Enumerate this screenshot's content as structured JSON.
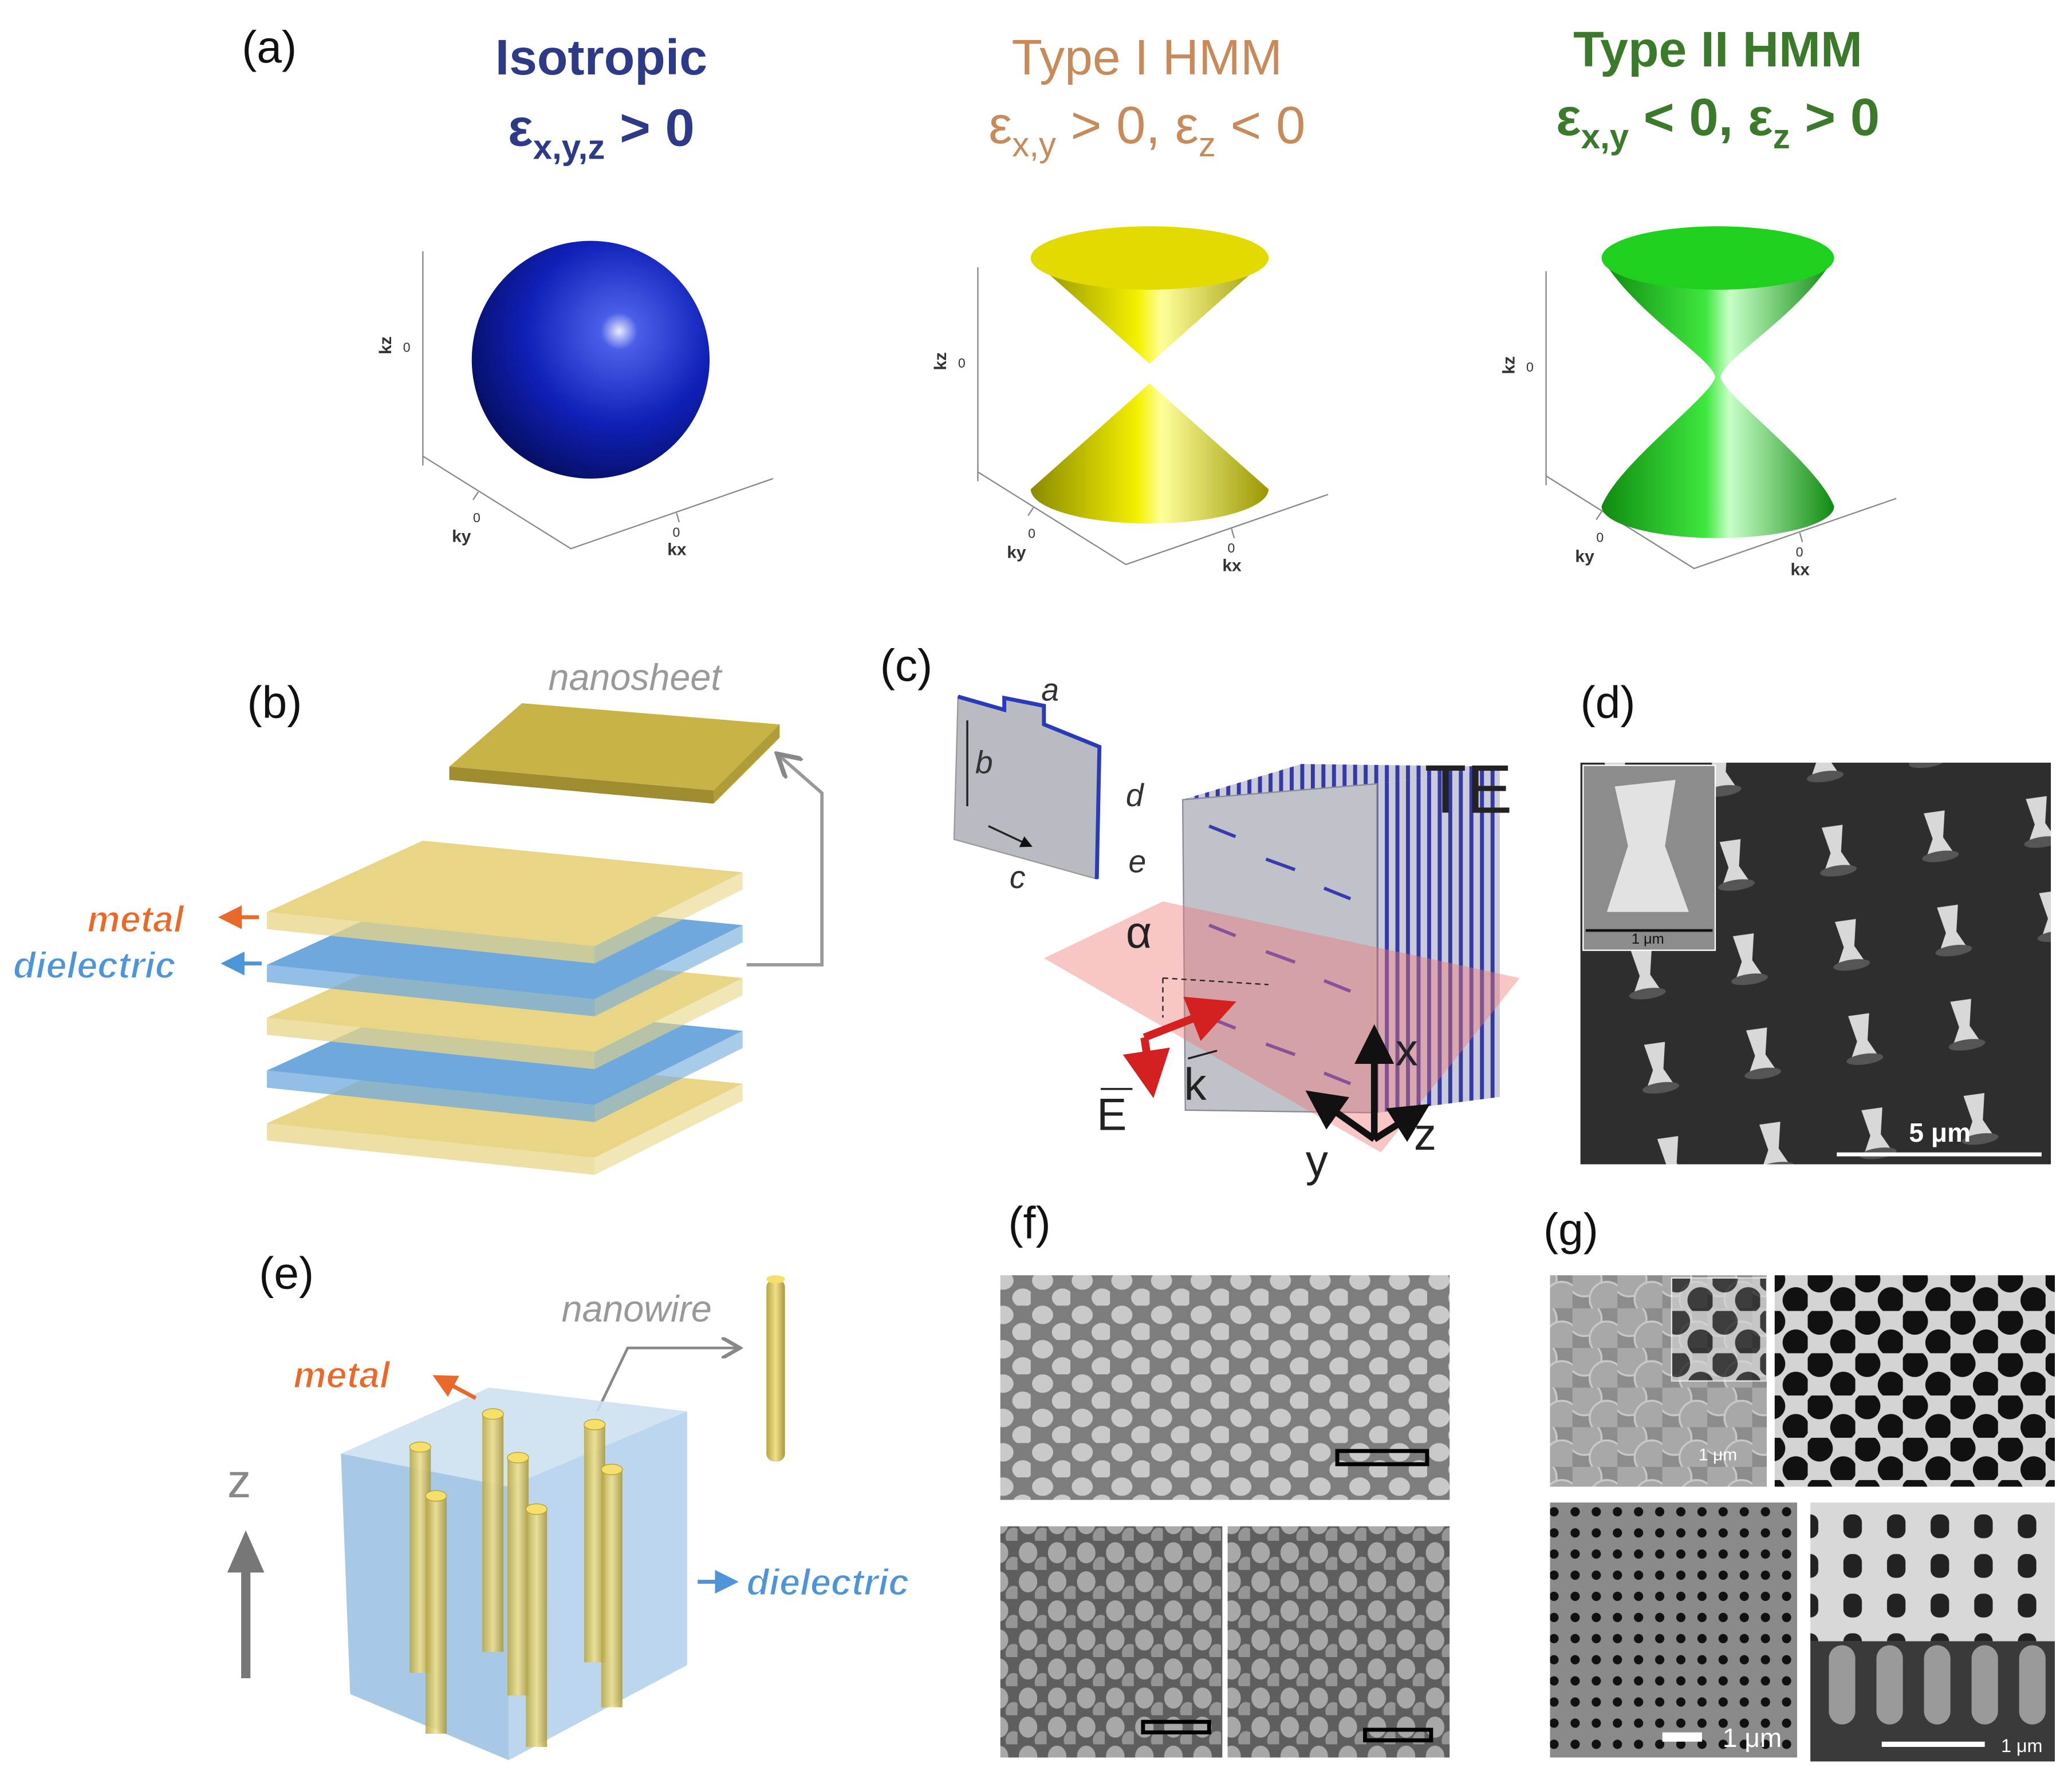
{
  "panel_a": {
    "label": "(a)",
    "tick": "0",
    "surfaces": [
      {
        "title": "Isotropic",
        "condition": [
          {
            "base": "ε",
            "sub": "x,y,z",
            "rel": " > 0"
          }
        ],
        "kz": "kz",
        "ky": "ky",
        "kx": "kx"
      },
      {
        "title": "Type I HMM",
        "condition": [
          {
            "base": "ε",
            "sub": "x,y",
            "rel": " > 0, "
          },
          {
            "base": "ε",
            "sub": "z",
            "rel": " < 0"
          }
        ],
        "kz": "kz",
        "ky": "ky",
        "kx": "kx"
      },
      {
        "title": "Type II HMM",
        "condition": [
          {
            "base": "ε",
            "sub": "x,y",
            "rel": " < 0, "
          },
          {
            "base": "ε",
            "sub": "z",
            "rel": " > 0"
          }
        ],
        "kz": "kz",
        "ky": "ky",
        "kx": "kx"
      }
    ]
  },
  "panel_b": {
    "label": "(b)",
    "nanosheet": "nanosheet",
    "metal": "metal",
    "dielectric": "dielectric"
  },
  "panel_c": {
    "label": "(c)",
    "mode": "TE",
    "dims": [
      "a",
      "b",
      "c",
      "d",
      "e"
    ],
    "angle": "α",
    "field": "E",
    "wavevector": "k",
    "axes": [
      "x",
      "y",
      "z"
    ]
  },
  "panel_d": {
    "label": "(d)",
    "inset_scale": "1 μm",
    "scale": "5 μm"
  },
  "panel_e": {
    "label": "(e)",
    "nanowire": "nanowire",
    "metal": "metal",
    "dielectric": "dielectric",
    "axis": "z"
  },
  "panel_f": {
    "label": "(f)"
  },
  "panel_g": {
    "label": "(g)",
    "scales": [
      "1 μm",
      "1 μm",
      "1 μm"
    ]
  }
}
